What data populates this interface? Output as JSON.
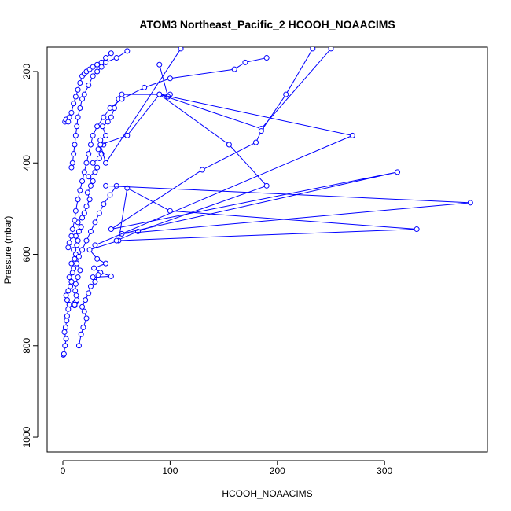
{
  "chart_data": {
    "type": "line",
    "title": "ATOM3 Northeast_Pacific_2 HCOOH_NOAACIMS",
    "xlabel": "HCOOH_NOAACIMS",
    "ylabel": "Pressure (mbar)",
    "xlim": [
      0,
      380
    ],
    "ylim": [
      1040,
      150
    ],
    "y_reversed": true,
    "x_ticks": [
      0,
      100,
      200,
      300
    ],
    "y_ticks": [
      200,
      400,
      600,
      800,
      1000
    ],
    "grid": false,
    "markers": "open-circle",
    "color": "#0000ff",
    "series": [
      {
        "x": [
          0.5,
          1,
          2,
          3,
          1.5,
          2.5,
          3.5,
          4,
          5,
          6,
          4,
          3,
          5,
          7,
          8,
          6,
          9,
          10,
          8,
          11,
          12,
          10,
          13,
          14,
          12,
          15,
          17,
          14,
          18,
          20
        ],
        "y": [
          820,
          818,
          800,
          785,
          770,
          760,
          745,
          735,
          720,
          710,
          700,
          690,
          680,
          670,
          660,
          650,
          640,
          630,
          620,
          610,
          600,
          590,
          580,
          570,
          560,
          550,
          540,
          530,
          520,
          510
        ]
      },
      {
        "x": [
          20,
          22,
          25,
          23,
          26,
          28,
          24,
          30,
          32,
          28,
          34,
          36,
          33,
          38,
          35,
          40,
          37,
          42,
          45,
          48,
          52,
          55,
          100,
          98,
          90
        ],
        "y": [
          510,
          495,
          480,
          465,
          450,
          440,
          430,
          420,
          410,
          400,
          390,
          380,
          370,
          360,
          350,
          340,
          320,
          310,
          300,
          280,
          260,
          250,
          250,
          255,
          185
        ]
      },
      {
        "x": [
          10,
          11,
          10.5,
          12,
          11,
          13,
          12.5,
          11.5,
          12,
          14,
          16,
          13,
          15,
          18,
          22,
          26,
          30,
          34,
          38,
          44,
          50
        ],
        "y": [
          710,
          712,
          708,
          705,
          710,
          700,
          690,
          680,
          665,
          650,
          635,
          620,
          605,
          590,
          570,
          550,
          530,
          510,
          490,
          470,
          450
        ]
      },
      {
        "x": [
          28,
          45,
          35,
          29,
          40,
          32,
          25,
          52,
          60,
          100,
          330,
          50,
          70,
          190,
          155,
          90,
          185,
          250
        ],
        "y": [
          650,
          648,
          640,
          630,
          620,
          610,
          590,
          570,
          455,
          505,
          545,
          570,
          550,
          450,
          360,
          250,
          325,
          150
        ]
      },
      {
        "x": [
          40,
          380,
          55,
          312,
          45,
          130,
          180,
          185,
          208,
          233
        ],
        "y": [
          450,
          487,
          555,
          420,
          545,
          415,
          355,
          330,
          250,
          150
        ]
      },
      {
        "x": [
          30,
          270,
          90,
          60,
          35,
          40,
          110
        ],
        "y": [
          580,
          340,
          250,
          340,
          360,
          400,
          150
        ]
      },
      {
        "x": [
          15,
          17,
          19,
          22,
          20,
          18,
          21,
          24,
          26,
          30,
          33
        ],
        "y": [
          800,
          775,
          760,
          740,
          725,
          715,
          700,
          685,
          670,
          660,
          645
        ]
      },
      {
        "x": [
          5,
          6,
          8,
          9,
          11,
          12,
          14,
          16,
          18,
          20,
          22,
          24,
          26,
          28,
          32,
          38,
          44,
          55,
          76,
          100,
          160,
          170,
          190
        ],
        "y": [
          585,
          575,
          560,
          545,
          525,
          505,
          480,
          460,
          440,
          420,
          400,
          380,
          360,
          340,
          320,
          300,
          280,
          260,
          235,
          215,
          195,
          180,
          170
        ]
      },
      {
        "x": [
          2,
          3,
          5,
          6,
          8,
          10,
          12,
          14,
          16,
          18,
          20,
          22,
          25,
          28,
          32,
          36,
          40,
          45
        ],
        "y": [
          310,
          305,
          310,
          300,
          290,
          270,
          255,
          240,
          225,
          210,
          205,
          200,
          195,
          190,
          185,
          180,
          170,
          160
        ]
      },
      {
        "x": [
          8,
          9,
          10,
          11,
          12,
          13,
          14,
          16,
          18,
          20,
          24,
          28,
          32,
          36,
          40,
          50,
          60
        ],
        "y": [
          410,
          400,
          380,
          360,
          340,
          320,
          300,
          280,
          260,
          250,
          230,
          210,
          200,
          190,
          180,
          170,
          155
        ]
      }
    ]
  }
}
